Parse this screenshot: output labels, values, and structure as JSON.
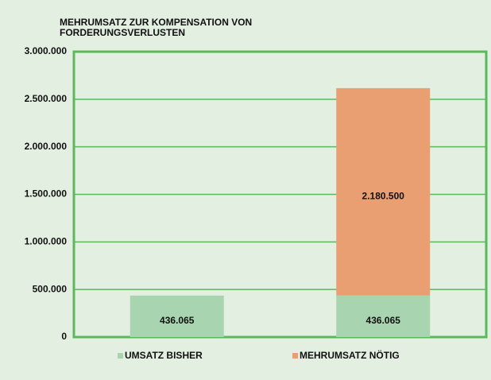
{
  "chart_data": {
    "type": "stacked_bar",
    "title": "MEHRUMSATZ ZUR KOMPENSATION VON FORDERUNGSVERLUSTEN",
    "categories": [
      null,
      null
    ],
    "series": [
      {
        "name": "UMSATZ BISHER",
        "color": "#a8d5b0",
        "values": [
          436065,
          436065
        ],
        "value_labels": [
          "436.065",
          "436.065"
        ]
      },
      {
        "name": "MEHRUMSATZ NÖTIG",
        "color": "#e99f72",
        "values": [
          null,
          2180500
        ],
        "value_labels": [
          null,
          "2.180.500"
        ]
      }
    ],
    "ylim": [
      0,
      3000000
    ],
    "yticks": [
      0,
      {
        "value": 500000,
        "label": "500.000"
      },
      {
        "value": 1000000,
        "label": "1.000.000"
      },
      {
        "value": 1500000,
        "label": "1.500.000"
      },
      {
        "value": 2000000,
        "label": "2.000.000"
      },
      {
        "value": 2500000,
        "label": "2.500.000"
      },
      {
        "value": 3000000,
        "label": "3.000.000"
      }
    ],
    "grid": true,
    "legend": "bottom"
  }
}
